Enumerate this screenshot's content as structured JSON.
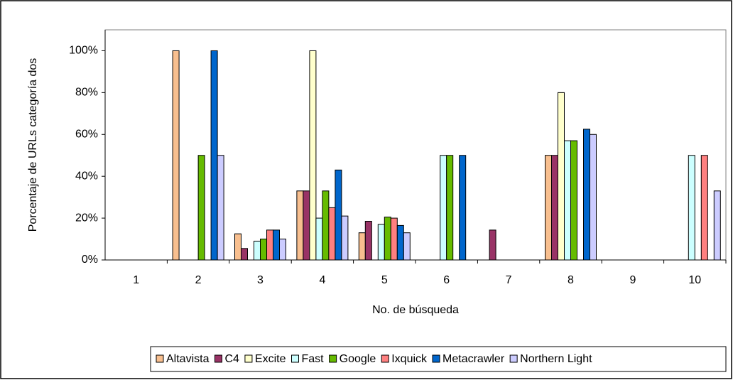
{
  "chart_data": {
    "type": "bar",
    "ylabel": "Porcentaje de URLs categoría dos",
    "xlabel": "No. de búsqueda",
    "categories": [
      "1",
      "2",
      "3",
      "4",
      "5",
      "6",
      "7",
      "8",
      "9",
      "10"
    ],
    "series": [
      {
        "name": "Altavista",
        "color": "#f8bf8f",
        "values": [
          0,
          100,
          12.5,
          33,
          13,
          0,
          0,
          50,
          0,
          0
        ]
      },
      {
        "name": "C4",
        "color": "#993366",
        "values": [
          0,
          0,
          5.5,
          33,
          18.5,
          0,
          14.3,
          50,
          0,
          0
        ]
      },
      {
        "name": "Excite",
        "color": "#ffffcc",
        "values": [
          0,
          0,
          0,
          100,
          0,
          0,
          0,
          80,
          0,
          0
        ]
      },
      {
        "name": "Fast",
        "color": "#ccffff",
        "values": [
          0,
          0,
          9,
          20,
          17,
          50,
          0,
          57,
          0,
          50
        ]
      },
      {
        "name": "Google",
        "color": "#66bb00",
        "values": [
          0,
          50,
          10,
          33,
          20.5,
          50,
          0,
          57,
          0,
          0
        ]
      },
      {
        "name": "Ixquick",
        "color": "#ff8080",
        "values": [
          0,
          0,
          14.3,
          25,
          20,
          0,
          0,
          0,
          0,
          50
        ]
      },
      {
        "name": "Metacrawler",
        "color": "#0066cc",
        "values": [
          0,
          100,
          14.3,
          43,
          16.5,
          50,
          0,
          62.5,
          0,
          0
        ]
      },
      {
        "name": "Northern Light",
        "color": "#ccccff",
        "values": [
          0,
          50,
          10,
          21,
          13,
          0,
          0,
          60,
          0,
          33
        ]
      }
    ],
    "ylim": [
      0,
      110
    ],
    "yticks": [
      {
        "value": 0,
        "label": "0%"
      },
      {
        "value": 20,
        "label": "20%"
      },
      {
        "value": 40,
        "label": "40%"
      },
      {
        "value": 60,
        "label": "60%"
      },
      {
        "value": 80,
        "label": "80%"
      },
      {
        "value": 100,
        "label": "100%"
      }
    ],
    "grid": false
  }
}
